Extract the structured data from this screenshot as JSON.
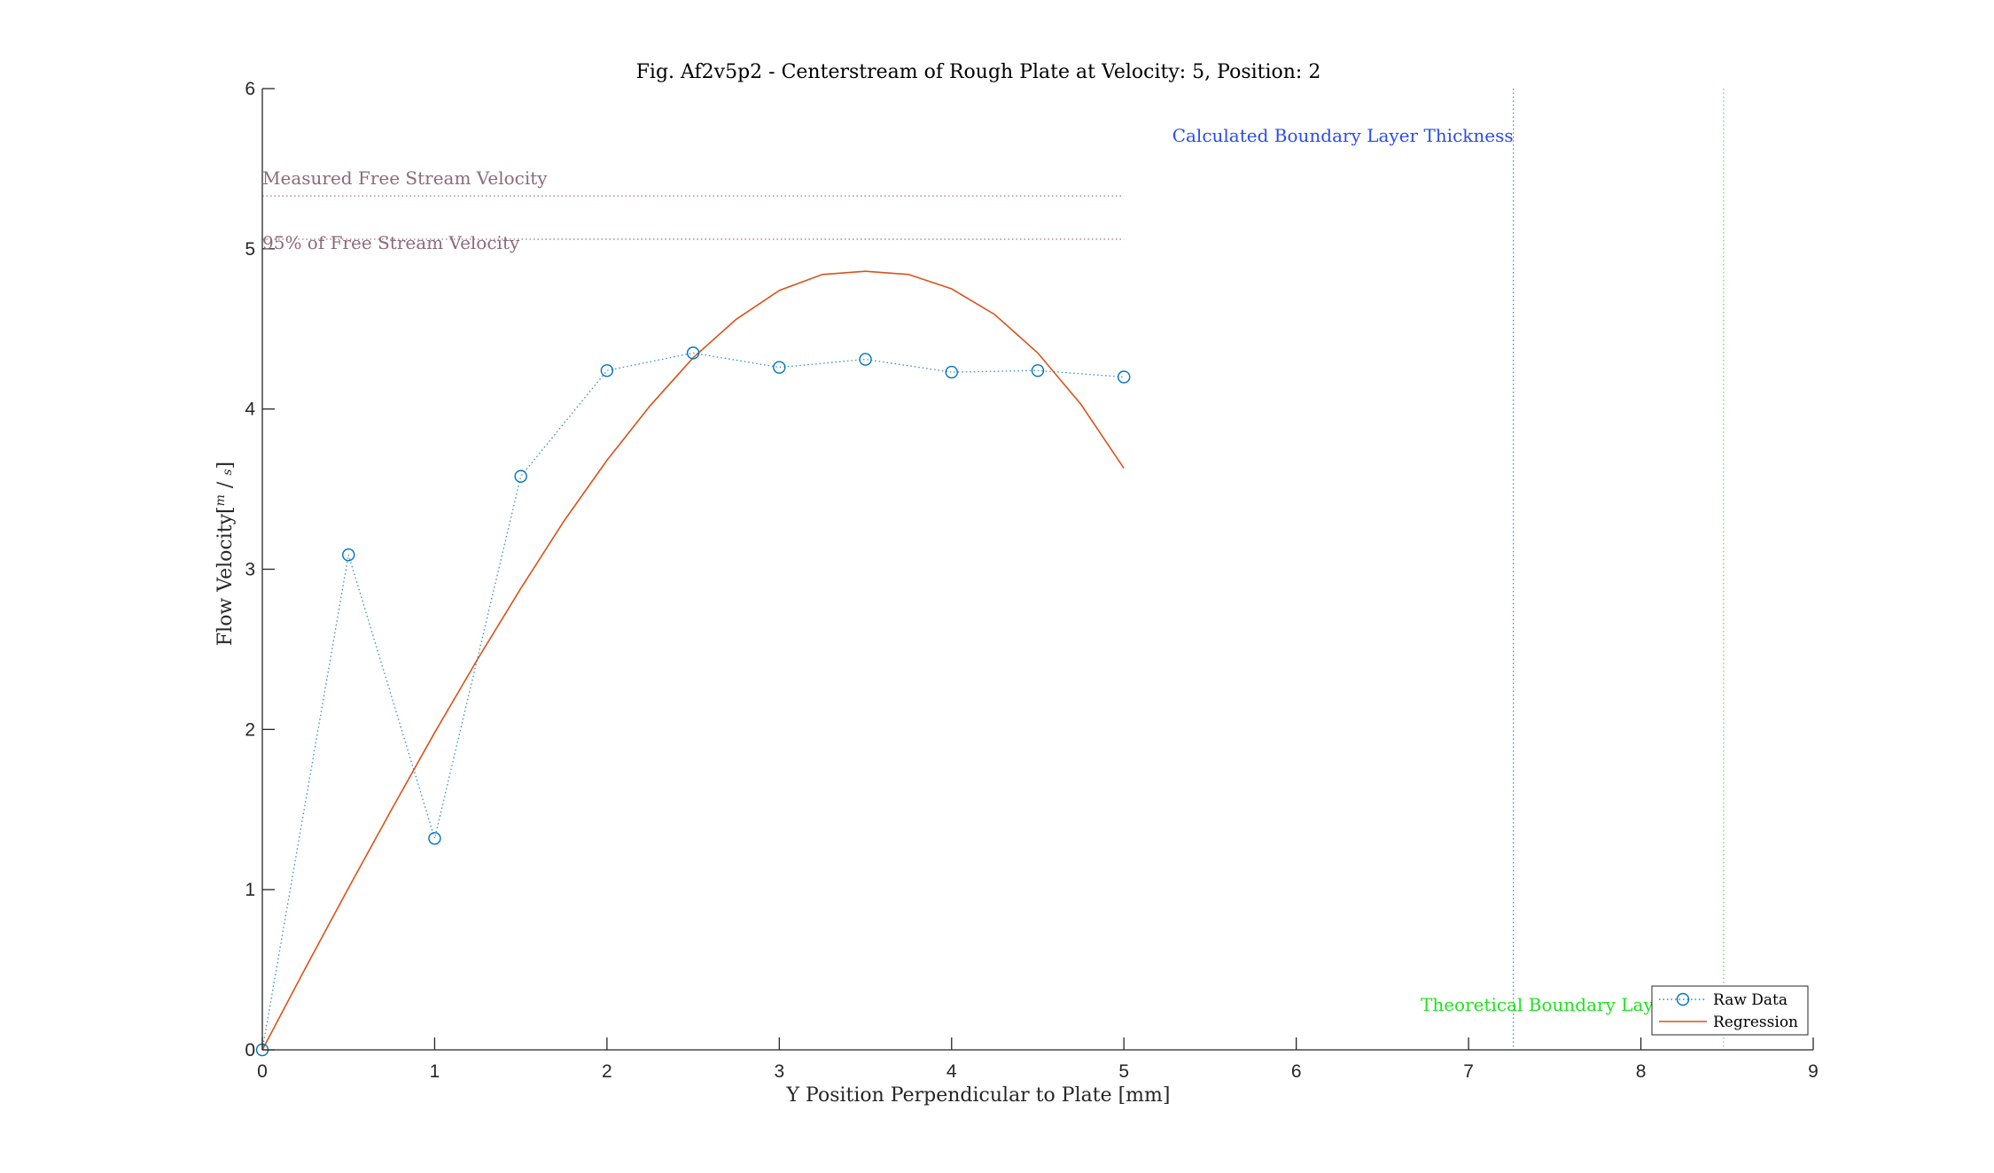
{
  "chart_data": {
    "type": "line",
    "title": "Fig. Af2v5p2 - Centerstream of Rough Plate at Velocity: 5, Position: 2",
    "xlabel": "Y Position Perpendicular to Plate [mm]",
    "ylabel": "Flow Velocity",
    "ylabel_unit_num": "m",
    "ylabel_unit_den": "s",
    "xlim": [
      0,
      9
    ],
    "ylim": [
      0,
      6
    ],
    "xticks": [
      0,
      1,
      2,
      3,
      4,
      5,
      6,
      7,
      8,
      9
    ],
    "yticks": [
      0,
      1,
      2,
      3,
      4,
      5,
      6
    ],
    "grid": false,
    "legend_position": "bottom-right",
    "series": [
      {
        "name": "Raw Data",
        "style": "dotted-line-circle-markers",
        "color": "#0072BD",
        "x": [
          0,
          0.5,
          1,
          1.5,
          2,
          2.5,
          3,
          3.5,
          4,
          4.5,
          5
        ],
        "y": [
          0,
          3.09,
          1.32,
          3.58,
          4.24,
          4.35,
          4.26,
          4.31,
          4.23,
          4.24,
          4.2
        ]
      },
      {
        "name": "Regression",
        "style": "solid-line",
        "color": "#D95319",
        "x": [
          0,
          0.25,
          0.5,
          0.75,
          1,
          1.25,
          1.5,
          1.75,
          2,
          2.25,
          2.5,
          2.75,
          3,
          3.25,
          3.5,
          3.75,
          4,
          4.25,
          4.5,
          4.75,
          5
        ],
        "y": [
          0,
          0.51,
          1.01,
          1.5,
          1.98,
          2.44,
          2.88,
          3.3,
          3.68,
          4.02,
          4.32,
          4.56,
          4.74,
          4.84,
          4.86,
          4.84,
          4.75,
          4.59,
          4.35,
          4.03,
          3.63
        ]
      }
    ],
    "reference_lines": [
      {
        "orientation": "horizontal",
        "value": 5.33,
        "x_end": 5,
        "color": "#7E2F5A",
        "label": "Measured Free Stream Velocity",
        "label_color": "#8C6A7A"
      },
      {
        "orientation": "horizontal",
        "value": 5.06,
        "x_end": 5,
        "color": "#7E2F5A",
        "label": "95% of Free Stream Velocity",
        "label_color": "#8C6A7A"
      },
      {
        "orientation": "vertical",
        "value": 7.26,
        "color": "#3355FF",
        "label": "Calculated Boundary Layer Thickness",
        "label_color": "#2A4BF0"
      },
      {
        "orientation": "vertical",
        "value": 8.48,
        "color": "#33DD33",
        "label": "Theoretical Boundary Layer Thickness",
        "label_color": "#22E022"
      }
    ]
  }
}
